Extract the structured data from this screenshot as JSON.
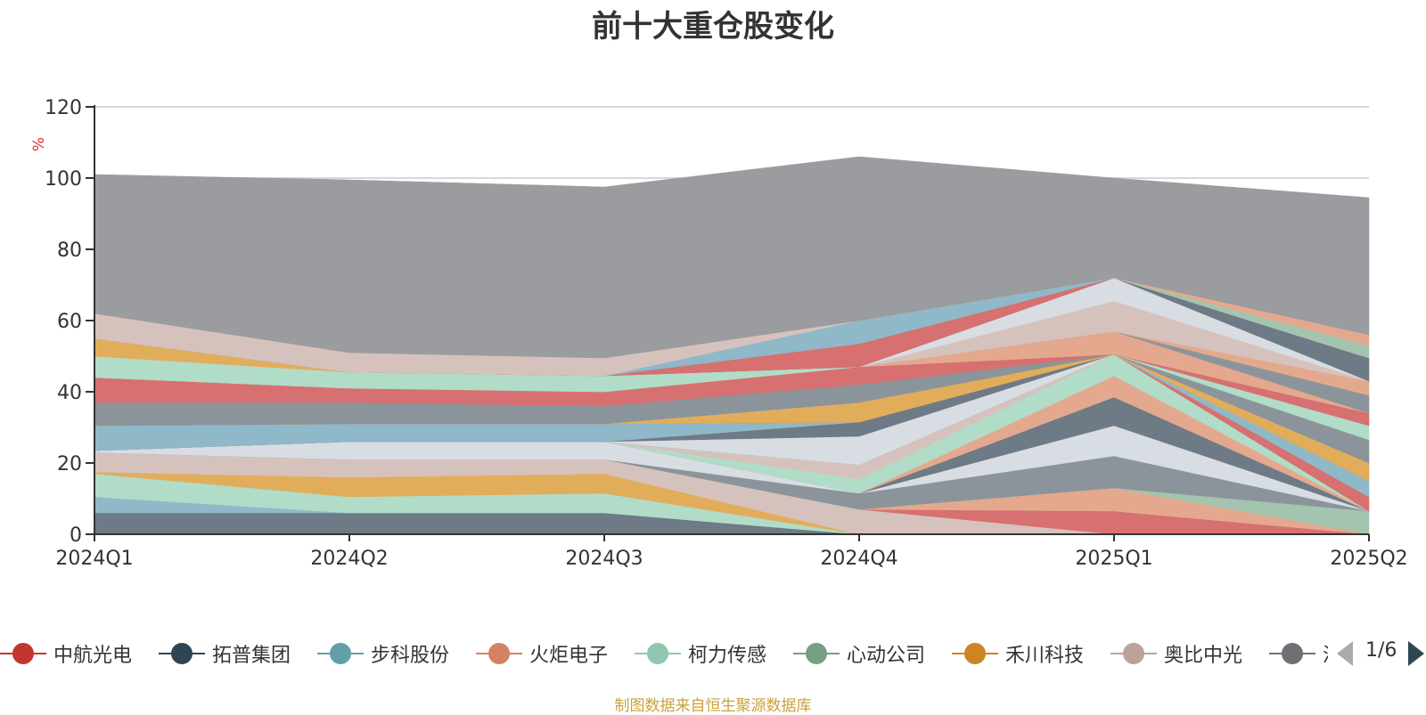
{
  "chart_data": {
    "type": "area",
    "title": "前十大重仓股变化",
    "ylabel": "%",
    "ylim": [
      0,
      120
    ],
    "yticks": [
      0,
      20,
      40,
      60,
      80,
      100,
      120
    ],
    "categories": [
      "2024Q1",
      "2024Q2",
      "2024Q3",
      "2024Q4",
      "2025Q1",
      "2025Q2"
    ],
    "grid": true,
    "legend_placement": "bottom",
    "series": [
      {
        "name": "",
        "color": "#6e7a85",
        "values": [
          6,
          6,
          6,
          0,
          0,
          0
        ]
      },
      {
        "name": "",
        "color": "#8fb8c8",
        "values": [
          4.5,
          0,
          0,
          0,
          0,
          0
        ]
      },
      {
        "name": "",
        "color": "#b0dcc8",
        "values": [
          6.5,
          4.5,
          5.5,
          0,
          0,
          0
        ]
      },
      {
        "name": "",
        "color": "#e2ad5b",
        "values": [
          0.5,
          5.5,
          5.5,
          0,
          0,
          0
        ]
      },
      {
        "name": "",
        "color": "#d6c2bd",
        "values": [
          5.5,
          5,
          4,
          7,
          0,
          0
        ]
      },
      {
        "name": "",
        "color": "#d77070",
        "values": [
          0,
          0,
          0,
          0,
          6.5,
          0
        ]
      },
      {
        "name": "",
        "color": "#e4a88e",
        "values": [
          0,
          0,
          0,
          0,
          6.5,
          0
        ]
      },
      {
        "name": "",
        "color": "#a3c4ae",
        "values": [
          0,
          0,
          0,
          0,
          0,
          6.5
        ]
      },
      {
        "name": "",
        "color": "#8b949b",
        "values": [
          0,
          0,
          0,
          4.5,
          9,
          0
        ]
      },
      {
        "name": "",
        "color": "#d8dde3",
        "values": [
          0.5,
          5,
          5,
          0,
          8.5,
          0
        ]
      },
      {
        "name": "",
        "color": "#6e7a85",
        "values": [
          0,
          0,
          0,
          0,
          8,
          0
        ]
      },
      {
        "name": "",
        "color": "#e4a88e",
        "values": [
          0,
          0,
          0,
          0,
          6,
          0
        ]
      },
      {
        "name": "",
        "color": "#b0dcc8",
        "values": [
          0,
          0,
          0,
          4,
          6,
          0
        ]
      },
      {
        "name": "",
        "color": "#d6c2bd",
        "values": [
          0,
          0,
          0,
          4,
          0,
          0
        ]
      },
      {
        "name": "",
        "color": "#d77070",
        "values": [
          0,
          0,
          0,
          0,
          0,
          4
        ]
      },
      {
        "name": "",
        "color": "#8fb8c8",
        "values": [
          0,
          0,
          0,
          0,
          0,
          4.5
        ]
      },
      {
        "name": "",
        "color": "#e2ad5b",
        "values": [
          0,
          0,
          0,
          0,
          0,
          5
        ]
      },
      {
        "name": "",
        "color": "#8b949b",
        "values": [
          0,
          0,
          0,
          0,
          0,
          6.5
        ]
      },
      {
        "name": "",
        "color": "#d8dde3",
        "values": [
          0,
          0,
          0,
          8,
          0,
          0
        ]
      },
      {
        "name": "",
        "color": "#6e7a85",
        "values": [
          0,
          0,
          0,
          4,
          0,
          0
        ]
      },
      {
        "name": "",
        "color": "#8fb8c8",
        "values": [
          7,
          5,
          5,
          0,
          0,
          0
        ]
      },
      {
        "name": "",
        "color": "#6e7a85",
        "values": [
          0,
          0,
          0,
          0,
          0,
          0
        ]
      },
      {
        "name": "",
        "color": "#b0dcc8",
        "values": [
          0,
          0,
          0,
          0,
          0,
          4
        ]
      },
      {
        "name": "",
        "color": "#d77070",
        "values": [
          0,
          0,
          0,
          0,
          0,
          3.5
        ]
      },
      {
        "name": "",
        "color": "#e2ad5b",
        "values": [
          0,
          0,
          0,
          5.5,
          0,
          0
        ]
      },
      {
        "name": "",
        "color": "#8b949b",
        "values": [
          6.5,
          6,
          5,
          5,
          0,
          0
        ]
      },
      {
        "name": "",
        "color": "#d77070",
        "values": [
          7,
          4,
          4,
          5,
          0,
          0
        ]
      },
      {
        "name": "",
        "color": "#e4a88e",
        "values": [
          0,
          0,
          0,
          0,
          6.5,
          0
        ]
      },
      {
        "name": "",
        "color": "#8b949b",
        "values": [
          0,
          0,
          0,
          0,
          0,
          5
        ]
      },
      {
        "name": "",
        "color": "#e4a88e",
        "values": [
          0,
          0,
          0,
          0,
          0,
          4
        ]
      },
      {
        "name": "",
        "color": "#b0dcc8",
        "values": [
          6,
          4.5,
          4.5,
          0,
          0,
          0
        ]
      },
      {
        "name": "",
        "color": "#d6c2bd",
        "values": [
          0,
          0,
          0,
          0,
          8.5,
          0
        ]
      },
      {
        "name": "",
        "color": "#e2ad5b",
        "values": [
          5,
          0,
          0,
          0,
          0,
          0
        ]
      },
      {
        "name": "",
        "color": "#d8dde3",
        "values": [
          0,
          0,
          0,
          0,
          6.5,
          0
        ]
      },
      {
        "name": "",
        "color": "#6e7a85",
        "values": [
          0,
          0,
          0,
          0,
          0,
          6.5
        ]
      },
      {
        "name": "",
        "color": "#d77070",
        "values": [
          0,
          0,
          0,
          6.5,
          0,
          0
        ]
      },
      {
        "name": "",
        "color": "#8fb8c8",
        "values": [
          0,
          0,
          0,
          6.5,
          0,
          0
        ]
      },
      {
        "name": "",
        "color": "#d6c2bd",
        "values": [
          7,
          5.5,
          5,
          0,
          0,
          0
        ]
      },
      {
        "name": "",
        "color": "#a3c4ae",
        "values": [
          0,
          0,
          0,
          0,
          0,
          3.5
        ]
      },
      {
        "name": "",
        "color": "#e4a88e",
        "values": [
          0,
          0,
          0,
          0,
          0,
          3
        ]
      },
      {
        "name": "",
        "color": "#9a9ca0",
        "values": [
          39,
          48.5,
          48,
          46,
          28,
          38.5
        ]
      }
    ]
  },
  "legend": {
    "items": [
      {
        "label": "中航光电",
        "color": "#c23531"
      },
      {
        "label": "拓普集团",
        "color": "#2f4554"
      },
      {
        "label": "步科股份",
        "color": "#61a0a8"
      },
      {
        "label": "火炬电子",
        "color": "#d48265"
      },
      {
        "label": "柯力传感",
        "color": "#91c7ae"
      },
      {
        "label": "心动公司",
        "color": "#749f83"
      },
      {
        "label": "禾川科技",
        "color": "#ca8622"
      },
      {
        "label": "奥比中光",
        "color": "#bda29a"
      },
      {
        "label": "汇",
        "color": "#6e7074"
      }
    ],
    "page": "1/6"
  },
  "source": "制图数据来自恒生聚源数据库"
}
